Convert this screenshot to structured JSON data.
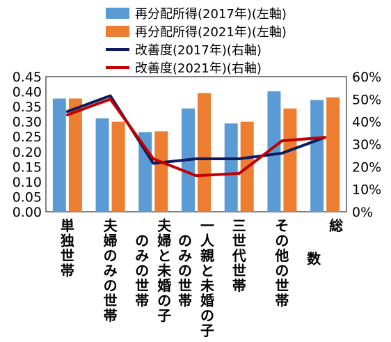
{
  "chart_data": {
    "type": "bar",
    "categories": [
      "単独世帯",
      "夫婦のみの世帯",
      "夫婦と未婚の子のみの世帯",
      "一人親と未婚の子のみの世帯",
      "三世代世帯",
      "その他の世帯",
      "総数"
    ],
    "category_lines": [
      [
        "単独世帯"
      ],
      [
        "夫婦のみの世帯"
      ],
      [
        "夫婦と未婚の子",
        "のみの世帯"
      ],
      [
        "一人親と未婚の子",
        "のみの世帯"
      ],
      [
        "三世代世帯"
      ],
      [
        "その他の世帯"
      ],
      [
        "総",
        "数"
      ]
    ],
    "series": [
      {
        "name": "再分配所得(2017年)(左軸)",
        "kind": "bar",
        "axis": "left",
        "color": "#5B9BD5",
        "values": [
          0.377,
          0.311,
          0.265,
          0.344,
          0.294,
          0.401,
          0.372
        ]
      },
      {
        "name": "再分配所得(2021年)(左軸)",
        "kind": "bar",
        "axis": "left",
        "color": "#ED7D31",
        "values": [
          0.377,
          0.3,
          0.268,
          0.395,
          0.3,
          0.344,
          0.381
        ]
      },
      {
        "name": "改善度(2017年)(右軸)",
        "kind": "line",
        "axis": "right",
        "color": "#0D1B5E",
        "values": [
          44.5,
          51.5,
          21.5,
          23.5,
          23.5,
          26.0,
          33.0
        ]
      },
      {
        "name": "改善度(2021年)(右軸)",
        "kind": "line",
        "axis": "right",
        "color": "#C00000",
        "values": [
          43.0,
          50.0,
          23.5,
          16.0,
          17.0,
          31.5,
          33.0
        ]
      }
    ],
    "left_axis": {
      "min": 0,
      "max": 0.45,
      "step": 0.05,
      "ticks": [
        "0.00",
        "0.05",
        "0.10",
        "0.15",
        "0.20",
        "0.25",
        "0.30",
        "0.35",
        "0.40",
        "0.45"
      ]
    },
    "right_axis": {
      "min": 0,
      "max": 60,
      "step": 10,
      "ticks": [
        "0%",
        "10%",
        "20%",
        "30%",
        "40%",
        "50%",
        "60%"
      ]
    },
    "grid": false,
    "legend_position": "top"
  }
}
